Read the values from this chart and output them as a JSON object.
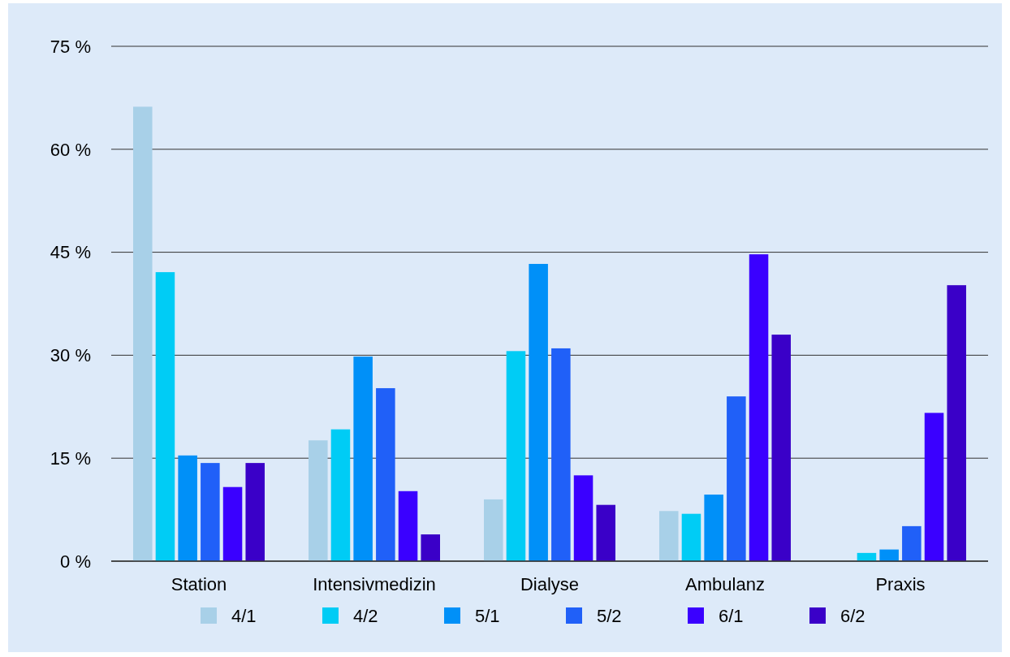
{
  "chart_data": {
    "type": "bar",
    "categories": [
      "Station",
      "Intensivmedizin",
      "Dialyse",
      "Ambulanz",
      "Praxis"
    ],
    "series": [
      {
        "name": "4/1",
        "color": "#a8d0e8",
        "values": [
          66.2,
          17.6,
          9.0,
          7.3,
          0
        ]
      },
      {
        "name": "4/2",
        "color": "#00ccf5",
        "values": [
          42.1,
          19.2,
          30.6,
          6.9,
          1.2
        ]
      },
      {
        "name": "5/1",
        "color": "#0090f8",
        "values": [
          15.4,
          29.8,
          43.3,
          9.7,
          1.7
        ]
      },
      {
        "name": "5/2",
        "color": "#2060f8",
        "values": [
          14.3,
          25.2,
          31.0,
          24.0,
          5.1
        ]
      },
      {
        "name": "6/1",
        "color": "#3a00ff",
        "values": [
          10.8,
          10.2,
          12.5,
          44.7,
          21.6
        ]
      },
      {
        "name": "6/2",
        "color": "#3a00c8",
        "values": [
          14.3,
          3.9,
          8.2,
          33.0,
          40.2
        ]
      }
    ],
    "ylim": [
      0,
      75
    ],
    "yticks": [
      {
        "value": 0,
        "label": "0 %"
      },
      {
        "value": 15,
        "label": "15 %"
      },
      {
        "value": 30,
        "label": "30 %"
      },
      {
        "value": 45,
        "label": "45 %"
      },
      {
        "value": 60,
        "label": "60 %"
      },
      {
        "value": 75,
        "label": "75 %"
      }
    ],
    "grid": "y",
    "legend": "bottom"
  }
}
